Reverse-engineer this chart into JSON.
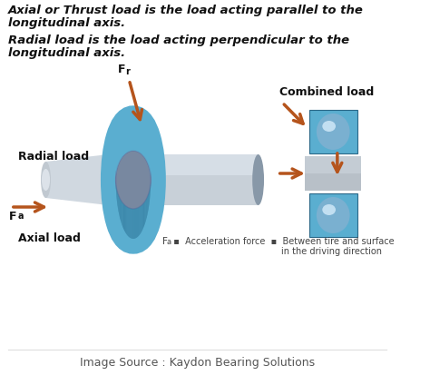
{
  "bg_color": "#ffffff",
  "text1_line1": "Axial or Thrust load is the load acting parallel to the",
  "text1_line2": "longitudinal axis.",
  "text2_line1": "Radial load is the load acting perpendicular to the",
  "text2_line2": "longitudinal axis.",
  "label_radial": "Radial load",
  "label_axial": "Axial load",
  "label_combined": "Combined load",
  "label_Fr": "F",
  "label_Fr_sub": "r",
  "label_Fa": "F",
  "label_Fa_sub": "a",
  "footnote1": "F",
  "footnote1_sub": "a",
  "footnote2": "  ▪  Acceleration force  ▪  Between tire and surface",
  "footnote3": "                                        in the driving direction",
  "source": "Image Source : Kaydon Bearing Solutions",
  "arrow_color": "#b5541c",
  "bearing_blue": "#5aaed0",
  "bearing_blue_dark": "#3a85a8",
  "bearing_blue_edge": "#2a6888",
  "shaft_mid": "#c8d0d8",
  "shaft_light": "#e0e8f0",
  "shaft_dark": "#8898a8",
  "gray_mid": "#b0b8c0",
  "ball_color": "#7ab0d0",
  "ball_shine": "#d0e8f8",
  "text_color": "#111111",
  "footnote_color": "#444444",
  "source_color": "#555555",
  "line_color": "#dddddd"
}
